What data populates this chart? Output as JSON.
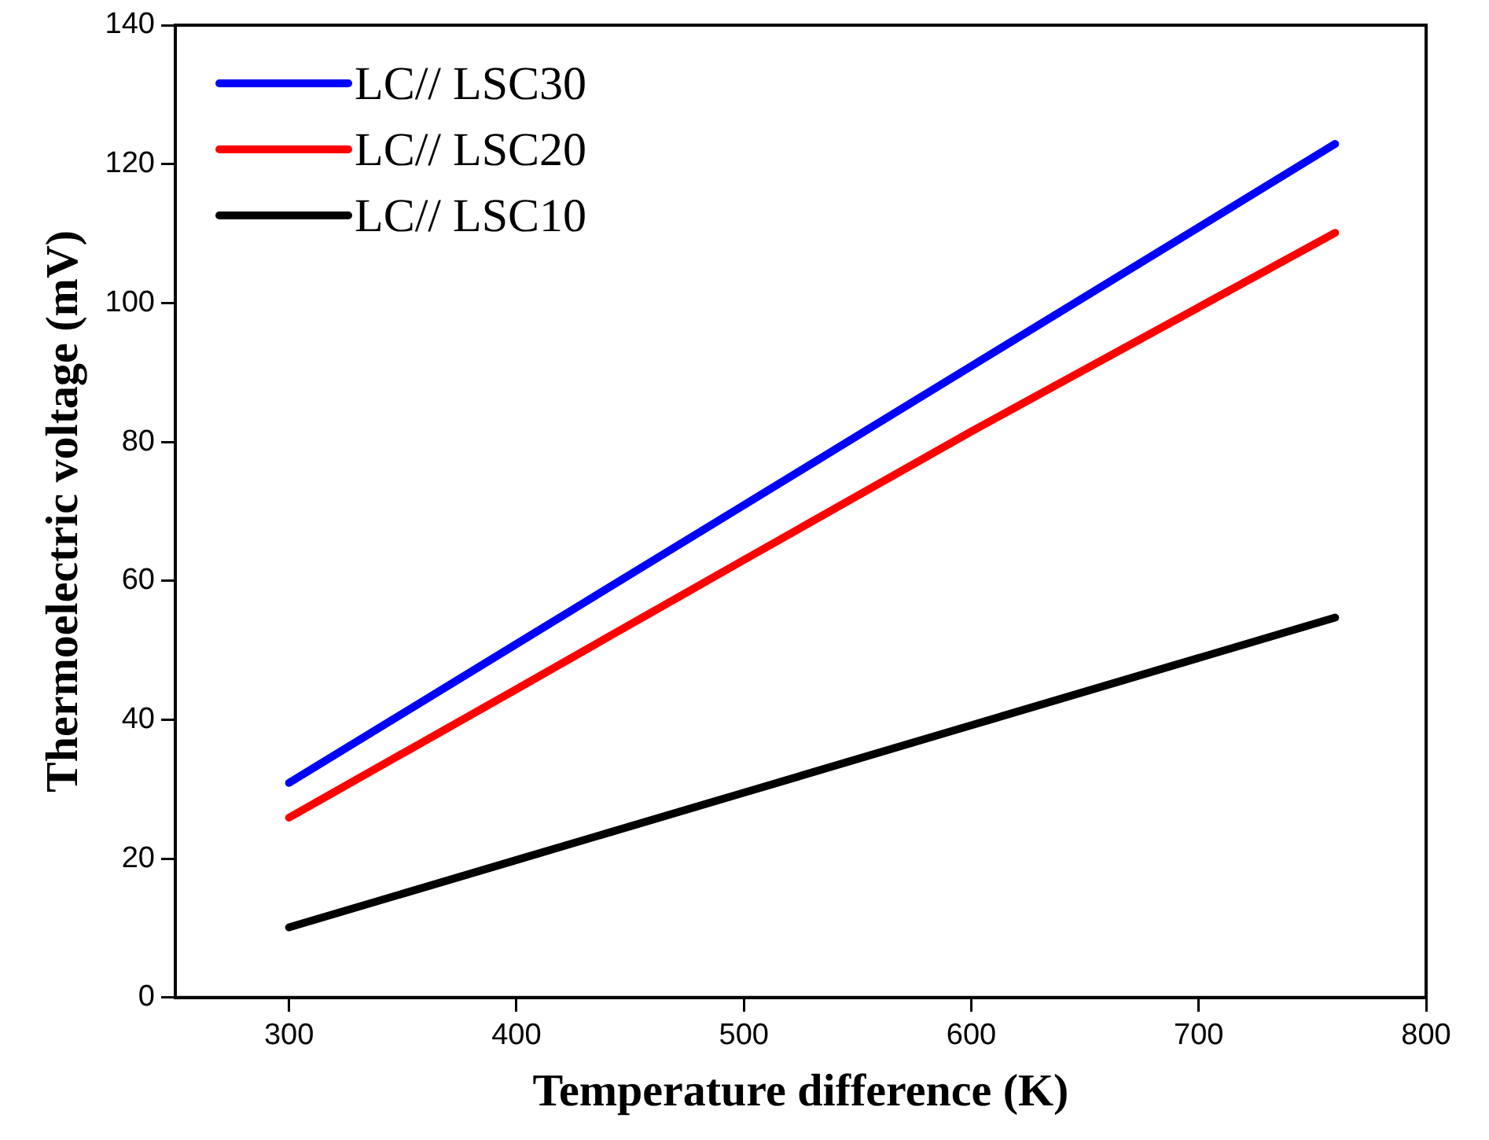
{
  "chart_data": {
    "type": "line",
    "xlabel": "Temperature difference (K)",
    "ylabel": "Thermoelectric voltage (mV)",
    "xlim": [
      250,
      800
    ],
    "xticks": [
      300,
      400,
      500,
      600,
      700,
      800
    ],
    "ylim": [
      0,
      140
    ],
    "yticks": [
      0,
      20,
      40,
      60,
      80,
      100,
      120,
      140
    ],
    "grid": false,
    "legend": "top left",
    "marker": "none",
    "line_style": "solid",
    "series": [
      {
        "name": "LC// LSC30",
        "color": "#0000ff",
        "x": [
          300,
          400,
          500,
          600,
          760
        ],
        "values": [
          30.9,
          50.9,
          70.9,
          90.9,
          122.9
        ]
      },
      {
        "name": "LC// LSC20",
        "color": "#ff0000",
        "x": [
          300,
          400,
          500,
          600,
          760
        ],
        "values": [
          25.9,
          44.4,
          63.0,
          81.5,
          110.1
        ]
      },
      {
        "name": "LC// LSC10",
        "color": "#000000",
        "x": [
          300,
          400,
          500,
          600,
          760
        ],
        "values": [
          10.1,
          19.8,
          29.5,
          39.2,
          54.7
        ]
      }
    ]
  }
}
